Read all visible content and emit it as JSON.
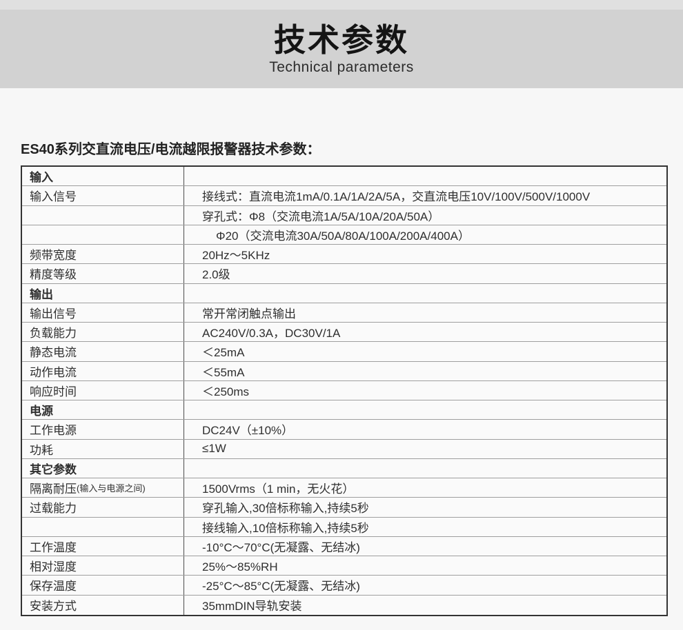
{
  "page": {
    "background_color": "#f7f7f7",
    "banner_color": "#d2d2d2",
    "top_strip_color": "#e0e0e0",
    "table_border_color": "#333333",
    "table_grid_color": "#9e9e9e"
  },
  "header": {
    "title": "技术参数",
    "subtitle": "Technical parameters"
  },
  "intro": {
    "heading": "ES40系列交直流电压/电流越限报警器技术参数："
  },
  "table": {
    "rows": [
      {
        "type": "section",
        "label": "输入",
        "label_note": "",
        "value": "",
        "value_indent": false
      },
      {
        "type": "param",
        "label": "输入信号",
        "label_note": "",
        "value": "接线式：直流电流1mA/0.1A/1A/2A/5A，交直流电压10V/100V/500V/1000V",
        "value_indent": false
      },
      {
        "type": "param",
        "label": "",
        "label_note": "",
        "value": "穿孔式：Φ8（交流电流1A/5A/10A/20A/50A）",
        "value_indent": false
      },
      {
        "type": "param",
        "label": "",
        "label_note": "",
        "value": "Φ20（交流电流30A/50A/80A/100A/200A/400A）",
        "value_indent": true
      },
      {
        "type": "param",
        "label": "频带宽度",
        "label_note": "",
        "value": "20Hz～5KHz",
        "value_indent": false
      },
      {
        "type": "param",
        "label": "精度等级",
        "label_note": "",
        "value": "2.0级",
        "value_indent": false
      },
      {
        "type": "section",
        "label": "输出",
        "label_note": "",
        "value": "",
        "value_indent": false
      },
      {
        "type": "param",
        "label": "输出信号",
        "label_note": "",
        "value": "常开常闭触点输出",
        "value_indent": false
      },
      {
        "type": "param",
        "label": "负载能力",
        "label_note": "",
        "value": "AC240V/0.3A，DC30V/1A",
        "value_indent": false
      },
      {
        "type": "param",
        "label": "静态电流",
        "label_note": "",
        "value": "＜25mA",
        "value_indent": false
      },
      {
        "type": "param",
        "label": "动作电流",
        "label_note": "",
        "value": "＜55mA",
        "value_indent": false
      },
      {
        "type": "param",
        "label": "响应时间",
        "label_note": "",
        "value": "＜250ms",
        "value_indent": false
      },
      {
        "type": "section",
        "label": "电源",
        "label_note": "",
        "value": "",
        "value_indent": false
      },
      {
        "type": "param",
        "label": "工作电源",
        "label_note": "",
        "value": "DC24V（±10%）",
        "value_indent": false
      },
      {
        "type": "param",
        "label": "功耗",
        "label_note": "",
        "value": "≤1W",
        "value_indent": false
      },
      {
        "type": "section",
        "label": "其它参数",
        "label_note": "",
        "value": "",
        "value_indent": false
      },
      {
        "type": "param",
        "label": "隔离耐压",
        "label_note": "(输入与电源之间)",
        "value": "1500Vrms（1 min，无火花）",
        "value_indent": false
      },
      {
        "type": "param",
        "label": "过载能力",
        "label_note": "",
        "value": "穿孔输入,30倍标称输入,持续5秒",
        "value_indent": false
      },
      {
        "type": "param",
        "label": "",
        "label_note": "",
        "value": "接线输入,10倍标称输入,持续5秒",
        "value_indent": false
      },
      {
        "type": "param",
        "label": "工作温度",
        "label_note": "",
        "value": "-10°C～70°C(无凝露、无结冰)",
        "value_indent": false
      },
      {
        "type": "param",
        "label": "相对湿度",
        "label_note": "",
        "value": "25%～85%RH",
        "value_indent": false
      },
      {
        "type": "param",
        "label": "保存温度",
        "label_note": "",
        "value": "-25°C～85°C(无凝露、无结冰)",
        "value_indent": false
      },
      {
        "type": "param",
        "label": "安装方式",
        "label_note": "",
        "value": "35mmDIN导轨安装",
        "value_indent": false
      }
    ]
  }
}
